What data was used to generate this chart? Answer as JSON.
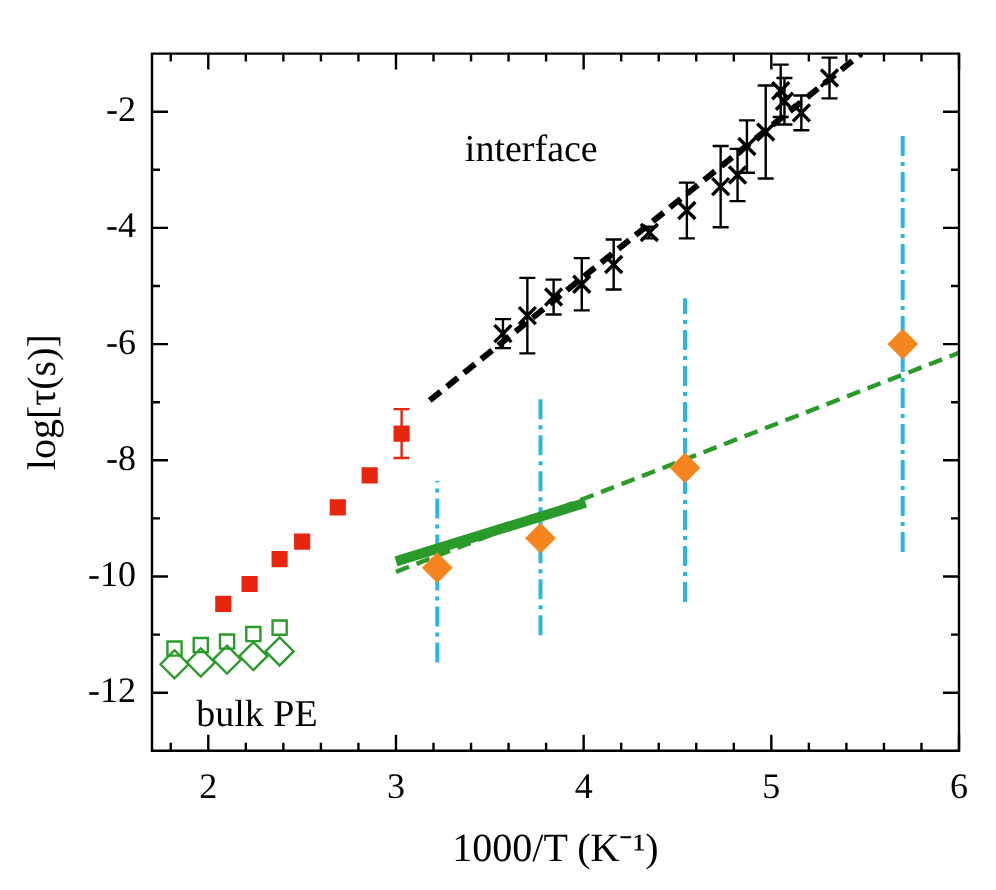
{
  "chart_data": {
    "type": "scatter",
    "xlabel": "1000/T (K⁻¹)",
    "ylabel": "log[τ(s)]",
    "xlim": [
      1.7,
      6
    ],
    "ylim": [
      -13,
      -1
    ],
    "xticks": [
      {
        "value": 1.8,
        "label": null
      },
      2,
      {
        "value": 2.2,
        "label": null
      },
      {
        "value": 2.4,
        "label": null
      },
      {
        "value": 2.6,
        "label": null
      },
      {
        "value": 2.8,
        "label": null
      },
      3,
      {
        "value": 3.2,
        "label": null
      },
      {
        "value": 3.4,
        "label": null
      },
      {
        "value": 3.6,
        "label": null
      },
      {
        "value": 3.8,
        "label": null
      },
      4,
      {
        "value": 4.2,
        "label": null
      },
      {
        "value": 4.4,
        "label": null
      },
      {
        "value": 4.6,
        "label": null
      },
      {
        "value": 4.8,
        "label": null
      },
      5,
      {
        "value": 5.2,
        "label": null
      },
      {
        "value": 5.4,
        "label": null
      },
      {
        "value": 5.6,
        "label": null
      },
      {
        "value": 5.8,
        "label": null
      },
      6
    ],
    "yticks": [
      -12,
      {
        "value": -11,
        "label": null
      },
      -10,
      {
        "value": -9,
        "label": null
      },
      -8,
      {
        "value": -7,
        "label": null
      },
      -6,
      {
        "value": -5,
        "label": null
      },
      -4,
      {
        "value": -3,
        "label": null
      },
      -2
    ],
    "grid": false,
    "legend": false,
    "annotations": [
      "interface",
      "bulk PE"
    ],
    "series": [
      {
        "marker": "square",
        "color": "#e8260f",
        "x": [
          2.08,
          2.22,
          2.38,
          2.5,
          2.69,
          2.86,
          3.03
        ],
        "values": [
          -10.47,
          -10.13,
          -9.7,
          -9.4,
          -8.81,
          -8.26,
          -7.54
        ],
        "errors": [
          null,
          null,
          null,
          null,
          null,
          null,
          0.42
        ]
      },
      {
        "marker": "square",
        "color": "#2a9a2a",
        "x": [
          1.82,
          1.96,
          2.1,
          2.24,
          2.38
        ],
        "values": [
          -11.24,
          -11.18,
          -11.12,
          -10.99,
          -10.88
        ]
      },
      {
        "marker": "diamond",
        "color": "#2a9a2a",
        "x": [
          1.82,
          1.96,
          2.1,
          2.24,
          2.38
        ],
        "values": [
          -11.51,
          -11.48,
          -11.43,
          -11.37,
          -11.29
        ]
      },
      {
        "marker": "diamond",
        "color": "#f5861f",
        "x": [
          3.22,
          3.77,
          4.54,
          5.7
        ],
        "values": [
          -9.85,
          -9.34,
          -8.13,
          -6.0
        ],
        "errors": [
          [
            -11.48,
            -8.35
          ],
          [
            -11.01,
            -6.94
          ],
          [
            -10.44,
            -5.21
          ],
          [
            -9.58,
            -2.41
          ]
        ]
      },
      {
        "marker": "cross",
        "color": "#000000",
        "x": [
          3.57,
          3.7,
          3.84,
          3.99,
          4.16,
          4.35,
          4.55,
          4.73,
          4.82,
          4.87,
          4.97,
          5.05,
          5.07,
          5.16,
          5.31
        ],
        "values": [
          -5.82,
          -5.51,
          -5.19,
          -4.97,
          -4.63,
          -4.08,
          -3.7,
          -3.29,
          -3.09,
          -2.6,
          -2.35,
          -1.64,
          -1.82,
          -2.02,
          -1.42
        ],
        "errors": [
          0.25,
          0.65,
          0.3,
          0.45,
          0.43,
          0.1,
          0.48,
          0.7,
          0.45,
          0.45,
          0.8,
          0.45,
          0.4,
          0.3,
          0.35
        ]
      },
      {
        "type": "line",
        "line_style": "dashed",
        "marker": "none",
        "color": "#000000",
        "x": [
          3.18,
          5.48
        ],
        "values": [
          -6.97,
          -1.0
        ]
      },
      {
        "type": "line",
        "line_style": "solid",
        "marker": "none",
        "color": "#2a9a2a",
        "x": [
          3.0,
          4.01
        ],
        "values": [
          -9.74,
          -8.73
        ]
      },
      {
        "type": "line",
        "line_style": "dashed",
        "marker": "none",
        "color": "#2a9a2a",
        "x": [
          3.0,
          6.0
        ],
        "values": [
          -9.92,
          -6.15
        ]
      }
    ]
  }
}
